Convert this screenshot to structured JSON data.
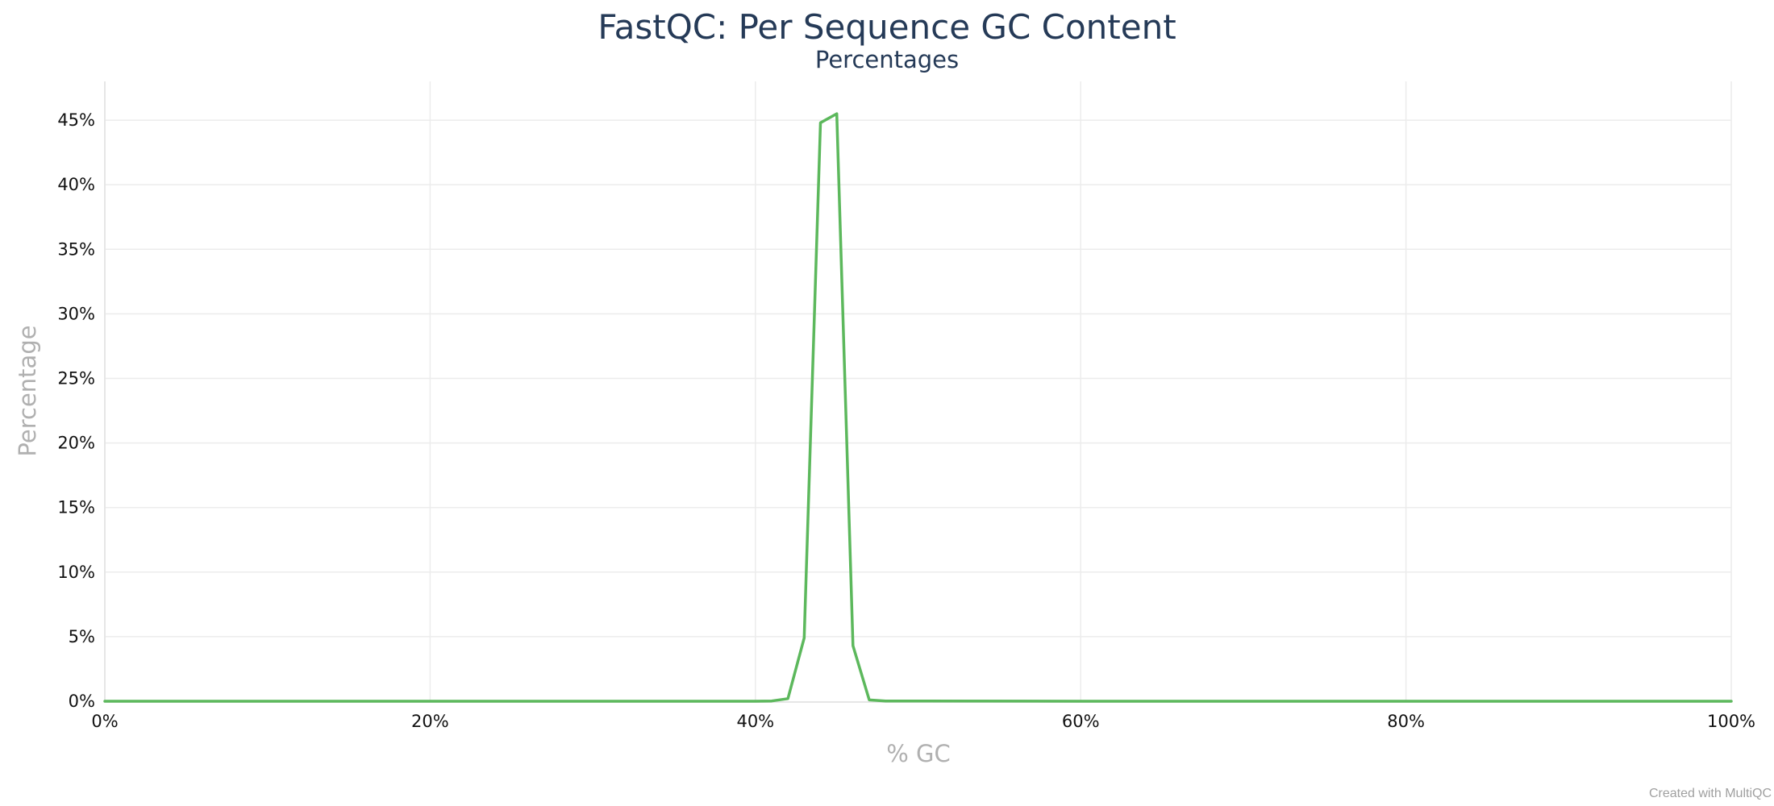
{
  "credit": "Created with MultiQC",
  "chart_data": {
    "type": "line",
    "title": "FastQC: Per Sequence GC Content",
    "subtitle": "Percentages",
    "xlabel": "% GC",
    "ylabel": "Percentage",
    "xlim": [
      0,
      100
    ],
    "ylim": [
      0,
      48
    ],
    "x_ticks": [
      "0%",
      "20%",
      "40%",
      "60%",
      "80%",
      "100%"
    ],
    "x_tick_values": [
      0,
      20,
      40,
      60,
      80,
      100
    ],
    "y_ticks": [
      "0%",
      "5%",
      "10%",
      "15%",
      "20%",
      "25%",
      "30%",
      "35%",
      "40%",
      "45%"
    ],
    "y_tick_values": [
      0,
      5,
      10,
      15,
      20,
      25,
      30,
      35,
      40,
      45
    ],
    "grid": true,
    "series": [
      {
        "color": "#5cb85c",
        "x": [
          0,
          10,
          20,
          30,
          40,
          41,
          42,
          43,
          44,
          45,
          46,
          47,
          48,
          50,
          60,
          70,
          80,
          90,
          100
        ],
        "y": [
          0,
          0,
          0,
          0,
          0,
          0.02,
          0.2,
          4.9,
          44.8,
          45.5,
          4.3,
          0.1,
          0.02,
          0.01,
          0,
          0,
          0,
          0,
          0
        ]
      }
    ]
  }
}
